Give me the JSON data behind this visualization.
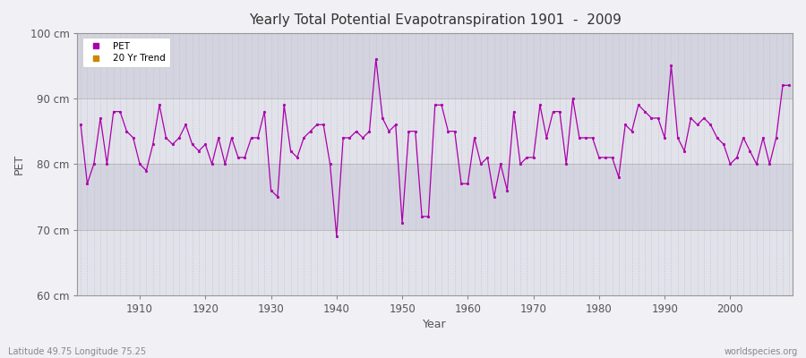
{
  "title": "Yearly Total Potential Evapotranspiration 1901  -  2009",
  "xlabel": "Year",
  "ylabel": "PET",
  "subtitle_left": "Latitude 49.75 Longitude 75.25",
  "subtitle_right": "worldspecies.org",
  "ylim": [
    60,
    100
  ],
  "ytick_labels": [
    "60 cm",
    "70 cm",
    "80 cm",
    "90 cm",
    "100 cm"
  ],
  "ytick_values": [
    60,
    70,
    80,
    90,
    100
  ],
  "year_start": 1901,
  "year_end": 2009,
  "legend_labels": [
    "PET",
    "20 Yr Trend"
  ],
  "legend_colors": [
    "#aa00aa",
    "#cc8800"
  ],
  "line_color": "#aa00aa",
  "bg_color": "#f0f0f5",
  "band_colors": [
    "#e8e8ee",
    "#d8d8e8"
  ],
  "pet_values": [
    86,
    77,
    80,
    87,
    80,
    88,
    88,
    85,
    84,
    80,
    79,
    83,
    89,
    84,
    83,
    84,
    86,
    83,
    82,
    83,
    80,
    84,
    80,
    84,
    81,
    81,
    84,
    84,
    88,
    76,
    75,
    89,
    82,
    81,
    84,
    85,
    86,
    86,
    80,
    69,
    84,
    84,
    85,
    84,
    85,
    96,
    87,
    85,
    86,
    71,
    85,
    85,
    72,
    72,
    89,
    89,
    85,
    85,
    77,
    77,
    84,
    80,
    81,
    75,
    80,
    76,
    88,
    80,
    81,
    81,
    89,
    84,
    88,
    88,
    80,
    90,
    84,
    84,
    84,
    81,
    81,
    81,
    78,
    86,
    85,
    89,
    88,
    87,
    87,
    84,
    95,
    84,
    82,
    87,
    86,
    87,
    86,
    84,
    83,
    80,
    81,
    84,
    82,
    80,
    84,
    80,
    84,
    92,
    92
  ]
}
